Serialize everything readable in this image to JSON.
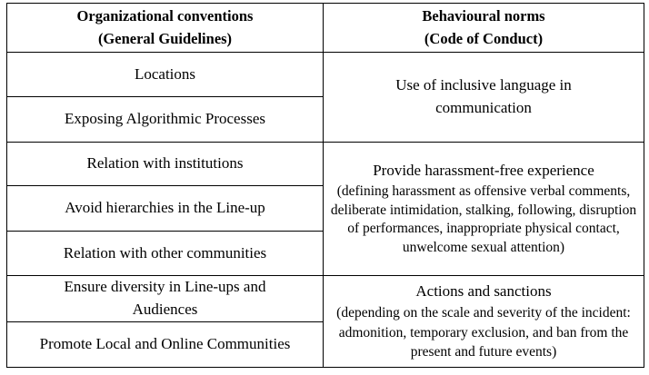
{
  "table": {
    "headers": {
      "left": {
        "line1": "Organizational conventions",
        "line2": "(General Guidelines)"
      },
      "right": {
        "line1": "Behavioural norms",
        "line2": "(Code of Conduct)"
      }
    },
    "conventions": [
      "Locations",
      "Exposing Algorithmic Processes",
      "Relation with institutions",
      "Avoid hierarchies in the Line-up",
      "Relation with other communities",
      "Ensure diversity in Line-ups and Audiences",
      "Promote Local and Online Communities"
    ],
    "norms": [
      {
        "title": "Use of inclusive language in communication",
        "detail": ""
      },
      {
        "title": "Provide harassment-free experience",
        "detail": "(defining harassment as offensive verbal comments, deliberate intimidation, stalking, following, disruption of performances, inappropriate physical contact, unwelcome sexual attention)"
      },
      {
        "title": "Actions and sanctions",
        "detail": "(depending on the scale and severity of the incident: admonition, temporary exclusion, and ban from the present and future events)"
      }
    ]
  }
}
